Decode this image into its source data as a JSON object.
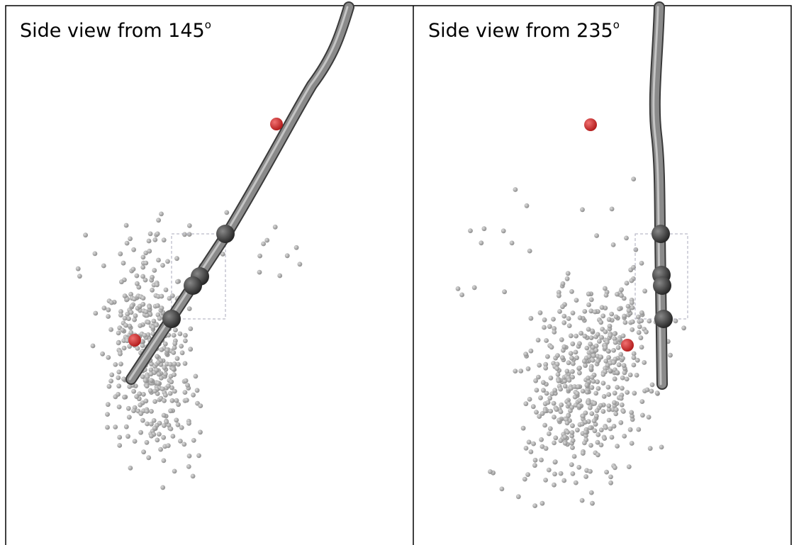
{
  "panels": [
    {
      "title": "Side view from 145",
      "superscript": "o"
    },
    {
      "title": "Side view from 235",
      "superscript": "o"
    }
  ]
}
